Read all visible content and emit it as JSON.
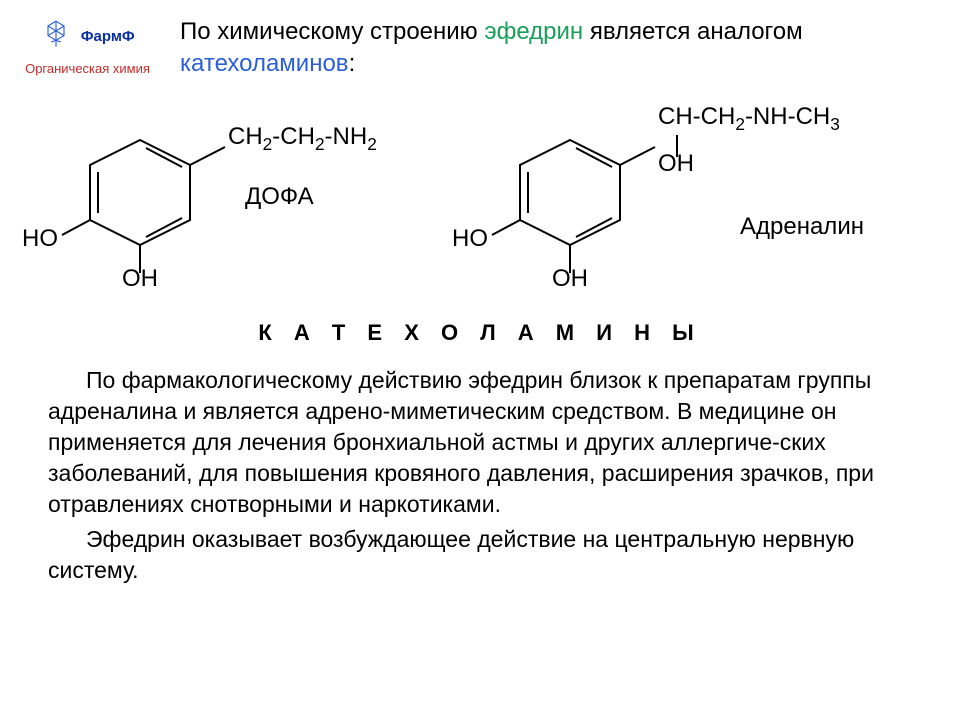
{
  "logo": {
    "pharm": "ФармФ",
    "sub": "Органическая химия",
    "icon_stroke": "#2b5fd9",
    "pharm_color": "#0a2fa0",
    "sub_color": "#c62b2b"
  },
  "intro": {
    "pre": "По химическому строению ",
    "ephedrine": "эфедрин",
    "mid": " является аналогом ",
    "catechol": "катехоламинов",
    "post": ":"
  },
  "structures": {
    "dopa": {
      "sidechain": "CH<sub>2</sub>-CH<sub>2</sub>-NH<sub>2</sub>",
      "label": "ДОФА",
      "ring_oh_left": "HO",
      "ring_oh_bottom": "OH"
    },
    "adrenaline": {
      "sidechain_top": "CH-CH<sub>2</sub>-NH-CH<sub>3</sub>",
      "sidechain_oh": "OH",
      "label": "Адреналин",
      "ring_oh_left": "HO",
      "ring_oh_bottom": "OH"
    },
    "colors": {
      "bond": "#000000",
      "text": "#000000"
    }
  },
  "section_title": "К А Т Е Х О Л А М И Н Ы",
  "body": {
    "p1": "По фармакологическому действию эфедрин близок к препаратам группы адреналина и является адрено-миметическим средством. В медицине он применяется для лечения бронхиальной астмы и других аллергиче-ских заболеваний, для повышения кровяного давления, расширения зрачков, при отравлениях снотворными и наркотиками.",
    "p2": "Эфедрин оказывает возбуждающее действие на центральную нервную систему."
  },
  "style": {
    "bg": "#ffffff",
    "text_color": "#000000",
    "green": "#1aa05a",
    "blue": "#2b5fd9",
    "base_fontsize": 24
  }
}
